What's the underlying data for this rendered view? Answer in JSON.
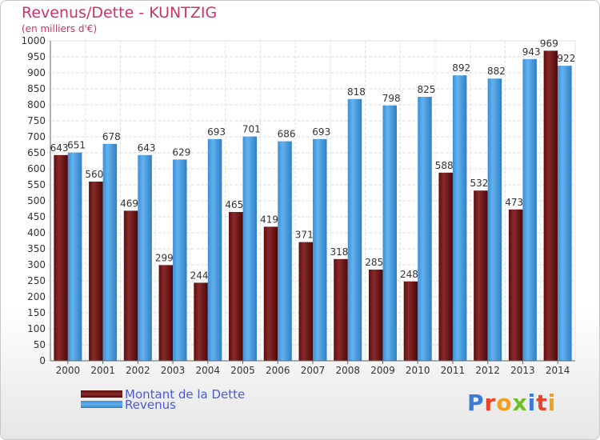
{
  "header": {
    "title": "Revenus/Dette - KUNTZIG",
    "subtitle": "(en milliers d'€)"
  },
  "legend": {
    "items": [
      {
        "label": "Montant de la Dette",
        "color": "#7a1a1a"
      },
      {
        "label": "Revenus",
        "color": "#4ea3e8"
      }
    ]
  },
  "logo": {
    "text": "Proxiti",
    "colors": [
      "#3b7bd8",
      "#e8442a",
      "#f0a01e",
      "#6cbf2a",
      "#3b7bd8",
      "#e8442a",
      "#f0a01e"
    ]
  },
  "chart_data": {
    "type": "bar",
    "categories": [
      "2000",
      "2001",
      "2002",
      "2003",
      "2004",
      "2005",
      "2006",
      "2007",
      "2008",
      "2009",
      "2010",
      "2011",
      "2012",
      "2013",
      "2014"
    ],
    "series": [
      {
        "name": "Montant de la Dette",
        "color": "#7a1a1a",
        "values": [
          643,
          560,
          469,
          299,
          244,
          465,
          419,
          371,
          318,
          285,
          248,
          588,
          532,
          473,
          969
        ]
      },
      {
        "name": "Revenus",
        "color": "#4ea3e8",
        "values": [
          651,
          678,
          643,
          629,
          693,
          701,
          686,
          693,
          818,
          798,
          825,
          892,
          882,
          943,
          922
        ]
      }
    ],
    "ylim": [
      0,
      1000
    ],
    "ytick_step": 50,
    "grid": true,
    "legend_position": "bottom-left"
  }
}
